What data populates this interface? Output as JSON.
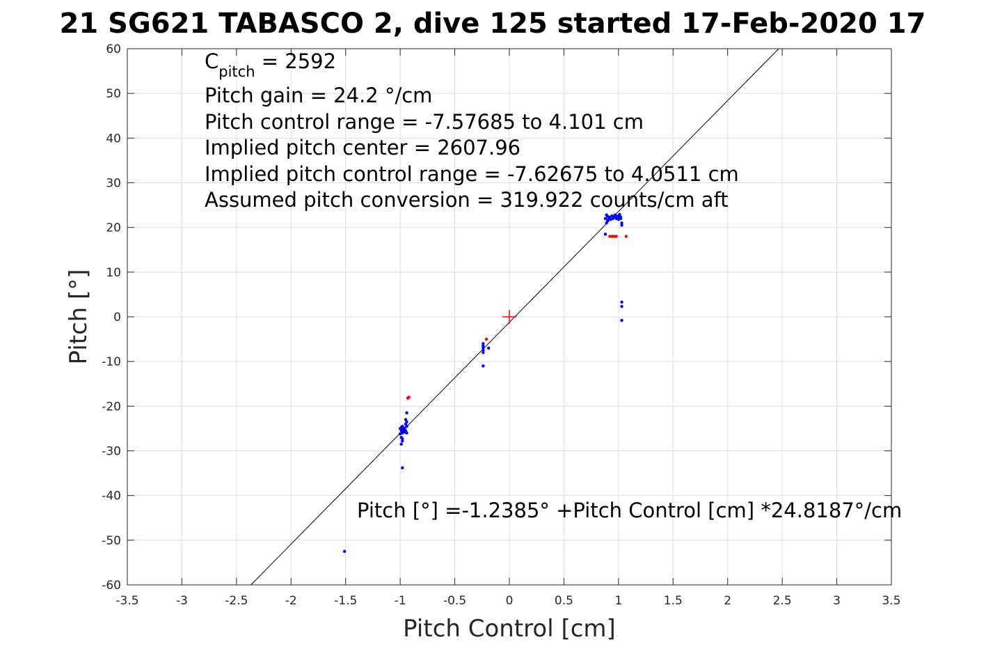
{
  "chart_data": {
    "type": "scatter",
    "title": "21 SG621 TABASCO 2, dive 125 started 17-Feb-2020 17",
    "xlabel": "Pitch Control [cm]",
    "ylabel": "Pitch [°]",
    "xlim": [
      -3.5,
      3.5
    ],
    "ylim": [
      -60,
      60
    ],
    "grid": true,
    "x_ticks": [
      "-3.5",
      "-3",
      "-2.5",
      "-2",
      "-1.5",
      "-1",
      "-0.5",
      "0",
      "0.5",
      "1",
      "1.5",
      "2",
      "2.5",
      "3",
      "3.5"
    ],
    "y_ticks": [
      "60",
      "50",
      "40",
      "30",
      "20",
      "10",
      "0",
      "-10",
      "-20",
      "-30",
      "-40",
      "-50",
      "-60"
    ],
    "annotation_lines": [
      {
        "main": "C",
        "sub": "pitch",
        "rest": " = 2592"
      },
      {
        "main": "Pitch gain = 24.2 °/cm"
      },
      {
        "main": "Pitch control range = -7.57685 to 4.101 cm"
      },
      {
        "main": "Implied pitch center = 2607.96"
      },
      {
        "main": "Implied pitch control range = -7.62675 to 4.0511 cm"
      },
      {
        "main": "Assumed pitch conversion = 319.922 counts/cm aft"
      }
    ],
    "fit_label": "Pitch [°] =-1.2385° +Pitch Control [cm] *24.8187°/cm",
    "fit_line": {
      "intercept": -1.2385,
      "slope": 24.8187,
      "color": "#000000"
    },
    "center_marker": {
      "x": 0,
      "y": 0,
      "color": "#ff0000"
    },
    "series": [
      {
        "color": "#0000ff",
        "points": [
          [
            -1.51,
            -52.5
          ],
          [
            -0.98,
            -33.8
          ],
          [
            -0.99,
            -28.5
          ],
          [
            -0.98,
            -27.8
          ],
          [
            -0.99,
            -27.0
          ],
          [
            -1.0,
            -26.2
          ],
          [
            -0.98,
            -26.0
          ],
          [
            -0.99,
            -25.5
          ],
          [
            -1.0,
            -25.0
          ],
          [
            -0.99,
            -24.8
          ],
          [
            -0.98,
            -24.5
          ],
          [
            -0.97,
            -25.2
          ],
          [
            -0.96,
            -24.9
          ],
          [
            -0.95,
            -25.8
          ],
          [
            -0.94,
            -26.0
          ],
          [
            -0.95,
            -25.5
          ],
          [
            -0.94,
            -24.5
          ],
          [
            -0.95,
            -24.0
          ],
          [
            -0.94,
            -23.5
          ],
          [
            -0.95,
            -23.0
          ],
          [
            -0.94,
            -21.5
          ],
          [
            -0.97,
            -25.8
          ],
          [
            -0.98,
            -27.3
          ],
          [
            -0.96,
            -25.3
          ],
          [
            -0.24,
            -11.0
          ],
          [
            -0.24,
            -8.0
          ],
          [
            -0.24,
            -7.5
          ],
          [
            -0.24,
            -7.0
          ],
          [
            -0.24,
            -6.5
          ],
          [
            -0.24,
            -6.0
          ],
          [
            -0.19,
            -7.0
          ],
          [
            0.88,
            22.0
          ],
          [
            0.89,
            21.0
          ],
          [
            0.9,
            22.5
          ],
          [
            0.91,
            22.0
          ],
          [
            0.92,
            22.3
          ],
          [
            0.93,
            21.8
          ],
          [
            0.94,
            22.6
          ],
          [
            0.95,
            22.0
          ],
          [
            0.96,
            22.4
          ],
          [
            0.97,
            22.8
          ],
          [
            0.98,
            22.0
          ],
          [
            0.99,
            22.5
          ],
          [
            1.0,
            22.1
          ],
          [
            1.01,
            22.7
          ],
          [
            1.02,
            22.3
          ],
          [
            1.03,
            21.0
          ],
          [
            1.03,
            20.5
          ],
          [
            1.02,
            22.0
          ],
          [
            1.01,
            22.9
          ],
          [
            0.9,
            21.5
          ],
          [
            0.89,
            22.8
          ],
          [
            1.0,
            21.8
          ],
          [
            0.88,
            18.5
          ],
          [
            1.03,
            3.3
          ],
          [
            1.03,
            2.3
          ],
          [
            1.03,
            -0.8
          ]
        ]
      },
      {
        "color": "#ff0000",
        "points": [
          [
            -0.93,
            -18.2
          ],
          [
            -0.92,
            -18.0
          ],
          [
            -0.21,
            -5.0
          ],
          [
            0.92,
            18.0
          ],
          [
            0.94,
            18.0
          ],
          [
            0.96,
            18.0
          ],
          [
            0.98,
            18.0
          ],
          [
            1.07,
            18.0
          ]
        ]
      }
    ]
  }
}
